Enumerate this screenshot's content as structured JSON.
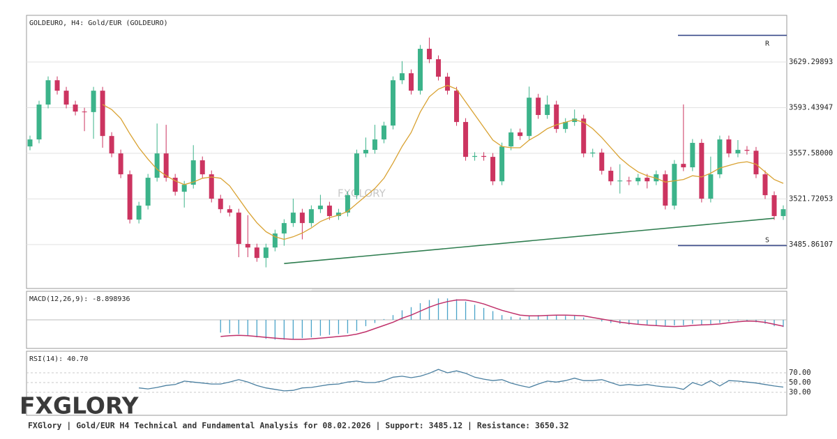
{
  "chart_data": [
    {
      "type": "candlestick",
      "title": "GOLDEURO, H4: Gold/EUR (GOLDEURO)",
      "watermark": "FXGLORY",
      "up_color": "#3cb38a",
      "down_color": "#cc3460",
      "open": [
        3563.0,
        3568.5,
        3595.9,
        3615.0,
        3606.8,
        3595.9,
        3590.4,
        3590.0,
        3606.8,
        3571.2,
        3557.5,
        3541.1,
        3505.5,
        3516.5,
        3538.4,
        3557.5,
        3538.4,
        3527.4,
        3532.9,
        3552.1,
        3541.1,
        3522.0,
        3513.7,
        3511.0,
        3486.4,
        3483.6,
        3475.4,
        3483.6,
        3494.6,
        3502.8,
        3511.0,
        3502.8,
        3513.7,
        3516.5,
        3508.3,
        3511.0,
        3524.7,
        3557.5,
        3560.3,
        3568.5,
        3579.4,
        3615.0,
        3620.5,
        3606.8,
        3639.7,
        3631.5,
        3617.8,
        3606.8,
        3582.2,
        3554.8,
        3555.5,
        3554.8,
        3535.6,
        3563.0,
        3574.0,
        3571.2,
        3601.3,
        3587.7,
        3595.9,
        3576.7,
        3582.2,
        3584.9,
        3557.5,
        3558.2,
        3543.9,
        3535.6,
        3536.2,
        3535.6,
        3538.4,
        3535.6,
        3541.1,
        3516.5,
        3549.3,
        3546.6,
        3565.8,
        3522.0,
        3541.1,
        3568.5,
        3557.5,
        3560.3,
        3559.6,
        3541.1,
        3524.7,
        3508.3
      ],
      "high": [
        3571.5,
        3598.9,
        3618.0,
        3618.0,
        3609.8,
        3598.9,
        3593.4,
        3609.8,
        3609.8,
        3574.2,
        3560.5,
        3544.1,
        3519.5,
        3541.4,
        3581.0,
        3580.0,
        3541.4,
        3535.9,
        3564.0,
        3555.1,
        3544.1,
        3525.0,
        3516.7,
        3514.0,
        3509.0,
        3486.6,
        3486.6,
        3497.6,
        3505.8,
        3522.0,
        3514.0,
        3516.7,
        3525.0,
        3519.5,
        3514.0,
        3527.7,
        3560.5,
        3570.0,
        3580.0,
        3582.4,
        3618.0,
        3630.0,
        3623.5,
        3642.7,
        3648.5,
        3634.5,
        3620.8,
        3609.8,
        3585.2,
        3558.5,
        3558.5,
        3557.8,
        3566.0,
        3577.0,
        3577.0,
        3610.0,
        3604.3,
        3603.0,
        3598.9,
        3585.2,
        3592.0,
        3587.9,
        3561.2,
        3561.2,
        3546.9,
        3549.0,
        3539.2,
        3541.4,
        3541.4,
        3544.1,
        3544.1,
        3552.3,
        3596.0,
        3568.8,
        3568.8,
        3555.0,
        3571.5,
        3571.5,
        3568.0,
        3563.3,
        3562.6,
        3544.1,
        3527.7,
        3516.7
      ],
      "low": [
        3560.0,
        3565.5,
        3592.9,
        3603.8,
        3592.9,
        3587.4,
        3575.0,
        3569.0,
        3562.0,
        3554.5,
        3538.1,
        3502.5,
        3502.5,
        3513.5,
        3535.4,
        3535.4,
        3524.4,
        3515.0,
        3529.9,
        3538.1,
        3519.0,
        3510.7,
        3508.0,
        3476.0,
        3476.0,
        3472.4,
        3468.0,
        3480.6,
        3485.0,
        3499.8,
        3490.0,
        3499.8,
        3510.7,
        3505.3,
        3505.3,
        3508.0,
        3521.7,
        3554.5,
        3557.3,
        3565.5,
        3576.4,
        3612.0,
        3603.8,
        3603.8,
        3628.5,
        3614.8,
        3603.8,
        3579.2,
        3551.8,
        3551.8,
        3551.8,
        3532.6,
        3532.6,
        3560.0,
        3568.2,
        3568.2,
        3584.7,
        3584.7,
        3573.7,
        3573.7,
        3579.2,
        3554.5,
        3554.5,
        3540.9,
        3532.6,
        3526.0,
        3532.6,
        3532.6,
        3530.0,
        3532.6,
        3513.5,
        3513.5,
        3543.6,
        3543.6,
        3519.0,
        3519.0,
        3538.1,
        3554.5,
        3554.5,
        3556.6,
        3538.1,
        3521.7,
        3505.3,
        3505.3
      ],
      "close": [
        3568.5,
        3595.9,
        3615.0,
        3606.8,
        3595.9,
        3590.4,
        3590.0,
        3606.8,
        3571.2,
        3557.5,
        3541.1,
        3505.5,
        3516.5,
        3538.4,
        3557.5,
        3538.4,
        3527.4,
        3532.9,
        3552.1,
        3541.1,
        3522.0,
        3513.7,
        3511.0,
        3486.4,
        3483.6,
        3475.4,
        3483.6,
        3494.6,
        3502.8,
        3511.0,
        3502.8,
        3513.7,
        3516.5,
        3508.3,
        3511.0,
        3524.7,
        3557.5,
        3560.3,
        3568.5,
        3579.4,
        3615.0,
        3620.5,
        3606.8,
        3639.7,
        3631.5,
        3617.8,
        3606.8,
        3582.2,
        3554.8,
        3555.5,
        3554.8,
        3535.6,
        3563.0,
        3574.0,
        3571.2,
        3601.3,
        3587.7,
        3595.9,
        3576.7,
        3582.2,
        3584.9,
        3557.5,
        3558.2,
        3543.9,
        3535.6,
        3536.2,
        3535.6,
        3538.4,
        3535.6,
        3541.1,
        3516.5,
        3549.3,
        3546.6,
        3565.8,
        3522.0,
        3541.1,
        3568.5,
        3557.5,
        3560.3,
        3559.6,
        3541.1,
        3524.7,
        3508.3,
        3513.7
      ],
      "ma": {
        "color": "#d9a232",
        "values": [
          null,
          null,
          null,
          null,
          null,
          null,
          null,
          null,
          3596,
          3592,
          3585,
          3573,
          3562,
          3553,
          3545,
          3540,
          3536,
          3533,
          3535,
          3538,
          3539,
          3538,
          3532,
          3522,
          3512,
          3503,
          3496,
          3492,
          3490,
          3492,
          3495,
          3499,
          3504,
          3507,
          3509,
          3512,
          3518,
          3524,
          3530,
          3538,
          3550,
          3563,
          3574,
          3590,
          3602,
          3608,
          3611,
          3608,
          3598,
          3588,
          3578,
          3568,
          3563,
          3562,
          3562,
          3568,
          3572,
          3577,
          3580,
          3582,
          3584,
          3582,
          3577,
          3570,
          3562,
          3554,
          3548,
          3543,
          3540,
          3538,
          3535,
          3536,
          3537,
          3540,
          3539,
          3542,
          3546,
          3548,
          3550,
          3551,
          3549,
          3543,
          3537,
          3534
        ]
      },
      "trendline": {
        "color": "#2e7d4f",
        "x": [
          28,
          82
        ],
        "values": [
          3471.0,
          3506.6
        ]
      },
      "levels": [
        {
          "label": "R",
          "value": 3650.32,
          "color": "#3a4a8a"
        },
        {
          "label": "S",
          "value": 3485.12,
          "color": "#3a4a8a"
        }
      ],
      "ylim": [
        3451.4,
        3666.0
      ],
      "yticks": [
        3629.29893,
        3593.43947,
        {
          "value": 3557.58,
          "label": "3557.58000"
        },
        3521.72053,
        3485.86107
      ],
      "grid": true
    },
    {
      "type": "macd",
      "title": "MACD(12,26,9): -8.898936",
      "histogram": {
        "color": "#4aa3c8",
        "values": [
          null,
          null,
          null,
          null,
          null,
          null,
          null,
          null,
          null,
          null,
          null,
          null,
          null,
          null,
          null,
          null,
          null,
          null,
          null,
          null,
          null,
          -8,
          -8.5,
          -9,
          -10,
          -11,
          -12,
          -12.5,
          -12.5,
          -12,
          -11.5,
          -11,
          -10,
          -9.5,
          -9,
          -8.5,
          -7,
          -4,
          -2,
          0.5,
          3,
          6,
          8,
          10.5,
          12.5,
          13.5,
          13.5,
          13,
          11.5,
          9.5,
          7.5,
          5.5,
          3,
          2,
          1.5,
          2.5,
          3,
          3,
          3,
          2.5,
          2.5,
          1.5,
          0,
          -1,
          -2,
          -2.5,
          -3,
          -3,
          -3.5,
          -3.5,
          -4,
          -3.5,
          -3.5,
          -2.5,
          -3,
          -3,
          -2,
          -1,
          -0.5,
          -0.5,
          -1.5,
          -2.5,
          -4,
          -4.5
        ]
      },
      "signal": {
        "color": "#c0306a",
        "values": [
          null,
          null,
          null,
          null,
          null,
          null,
          null,
          null,
          null,
          null,
          null,
          null,
          null,
          null,
          null,
          null,
          null,
          null,
          null,
          null,
          null,
          -10.5,
          -10,
          -9.8,
          -10,
          -10.5,
          -11,
          -11.5,
          -12,
          -12.3,
          -12.3,
          -12,
          -11.5,
          -11,
          -10.5,
          -10,
          -9,
          -7.5,
          -5.5,
          -3.5,
          -1.5,
          1,
          3,
          5.5,
          8,
          10,
          11.5,
          12.5,
          12.5,
          11.5,
          10,
          8,
          6,
          4.5,
          3,
          2.5,
          2.5,
          2.8,
          3,
          3,
          2.8,
          2.5,
          1.5,
          0.5,
          -0.5,
          -1.5,
          -2.2,
          -2.8,
          -3.3,
          -3.6,
          -4,
          -4.2,
          -4,
          -3.5,
          -3.2,
          -3,
          -2.6,
          -1.8,
          -1.2,
          -0.8,
          -0.9,
          -1.6,
          -2.8,
          -4
        ]
      },
      "ylim": [
        -18,
        18
      ]
    },
    {
      "type": "line",
      "title": "RSI(14): 40.70",
      "color": "#4a7fa0",
      "values": [
        null,
        null,
        null,
        null,
        null,
        null,
        null,
        null,
        null,
        null,
        null,
        null,
        39,
        37,
        40,
        44,
        46,
        53,
        51,
        49,
        47,
        47,
        51,
        56,
        51,
        44,
        39,
        36,
        33,
        34,
        39,
        40,
        43,
        46,
        47,
        51,
        53,
        50,
        50,
        54,
        61,
        63,
        60,
        63,
        69,
        77,
        70,
        74,
        69,
        61,
        57,
        54,
        56,
        49,
        44,
        40,
        47,
        53,
        51,
        54,
        59,
        54,
        54,
        56,
        50,
        44,
        46,
        44,
        46,
        43,
        41,
        40,
        36,
        50,
        44,
        54,
        43,
        54,
        53,
        51,
        49,
        46,
        43,
        40.7
      ],
      "ylim": [
        -17.1,
        114.3
      ],
      "yticks": [
        {
          "value": 70,
          "label": "70.00"
        },
        {
          "value": 50,
          "label": "50.00"
        },
        {
          "value": 30,
          "label": "30.00"
        }
      ],
      "grid": true
    }
  ],
  "logo": "FXGLORY",
  "footer": "FXGlory | Gold/EUR H4 Technical and Fundamental Analysis for 08.02.2026 | Support: 3485.12 | Resistance: 3650.32"
}
